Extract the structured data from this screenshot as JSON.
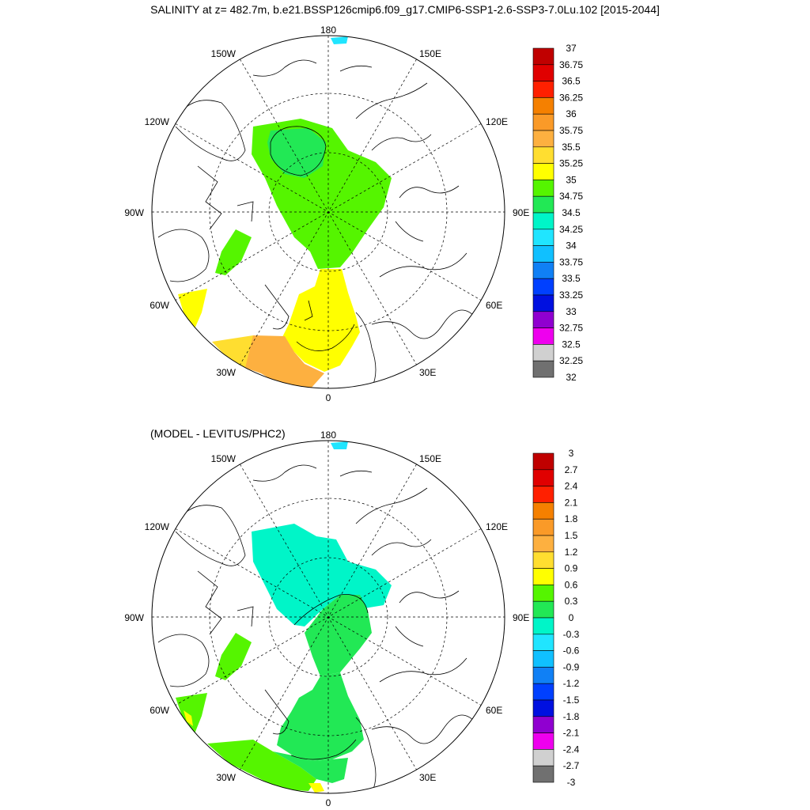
{
  "title": "SALINITY at z= 482.7m, b.e21.BSSP126cmip6.f09_g17.CMIP6-SSP1-2.6-SSP3-7.0Lu.102 [2015-2044]",
  "subtitle": "(MODEL - LEVITUS/PHC2)",
  "longitude_labels": {
    "top": "180",
    "bottom": "0",
    "left90": "90W",
    "right90": "90E",
    "ul150": "150W",
    "ur150": "150E",
    "ul120": "120W",
    "ur120": "120E",
    "ll60": "60W",
    "lr60": "60E",
    "ll30": "30W",
    "lr30": "30E"
  },
  "colorbar1": {
    "labels": [
      "37",
      "36.75",
      "36.5",
      "36.25",
      "36",
      "35.75",
      "35.5",
      "35.25",
      "35",
      "34.75",
      "34.5",
      "34.25",
      "34",
      "33.75",
      "33.5",
      "33.25",
      "33",
      "32.75",
      "32.5",
      "32.25",
      "32"
    ],
    "colors": [
      "#c00000",
      "#e00000",
      "#ff2000",
      "#f58000",
      "#fa9a28",
      "#fdb040",
      "#ffde30",
      "#ffff00",
      "#55f500",
      "#22e855",
      "#00f5c8",
      "#20e5ff",
      "#10c0ff",
      "#1080f5",
      "#0040ff",
      "#0010e0",
      "#9000d0",
      "#ee00ee",
      "#d0d0d0",
      "#707070"
    ]
  },
  "colorbar2": {
    "labels": [
      "3",
      "2.7",
      "2.4",
      "2.1",
      "1.8",
      "1.5",
      "1.2",
      "0.9",
      "0.6",
      "0.3",
      "0",
      "-0.3",
      "-0.6",
      "-0.9",
      "-1.2",
      "-1.5",
      "-1.8",
      "-2.1",
      "-2.4",
      "-2.7",
      "-3"
    ],
    "colors": [
      "#c00000",
      "#e00000",
      "#ff2000",
      "#f58000",
      "#fa9a28",
      "#fdb040",
      "#ffde30",
      "#ffff00",
      "#55f500",
      "#22e855",
      "#00f5c8",
      "#20e5ff",
      "#10c0ff",
      "#1080f5",
      "#0040ff",
      "#0010e0",
      "#9000d0",
      "#ee00ee",
      "#d0d0d0",
      "#707070"
    ]
  }
}
